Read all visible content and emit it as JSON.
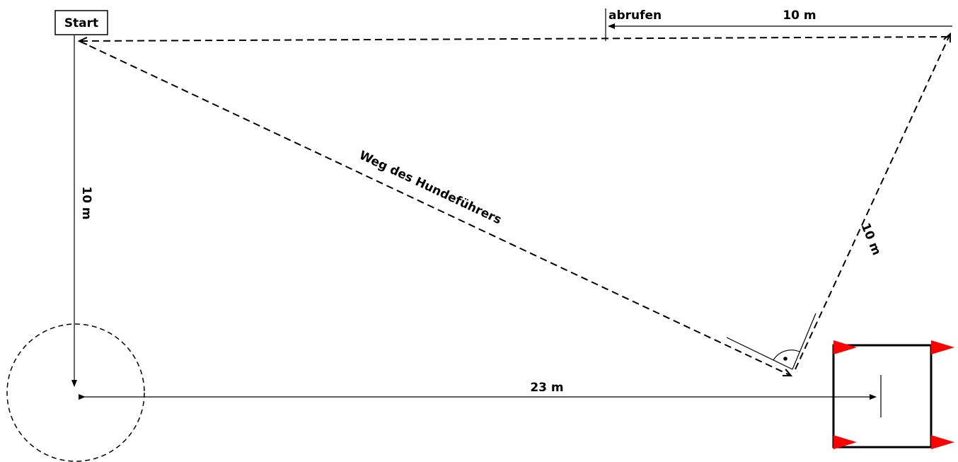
{
  "labels": {
    "start": "Start",
    "abrufen": "abrufen",
    "dist_top": "10 m",
    "dist_left": "10 m",
    "dist_right": "10 m",
    "dist_bottom": "23 m",
    "handler_path": "Weg des Hundeführers"
  },
  "colors": {
    "line": "#000000",
    "flag": "#ff0000",
    "background": "#ffffff"
  },
  "icons": {
    "flag": "red-triangle-flag",
    "right_angle": "right-angle-marker"
  }
}
